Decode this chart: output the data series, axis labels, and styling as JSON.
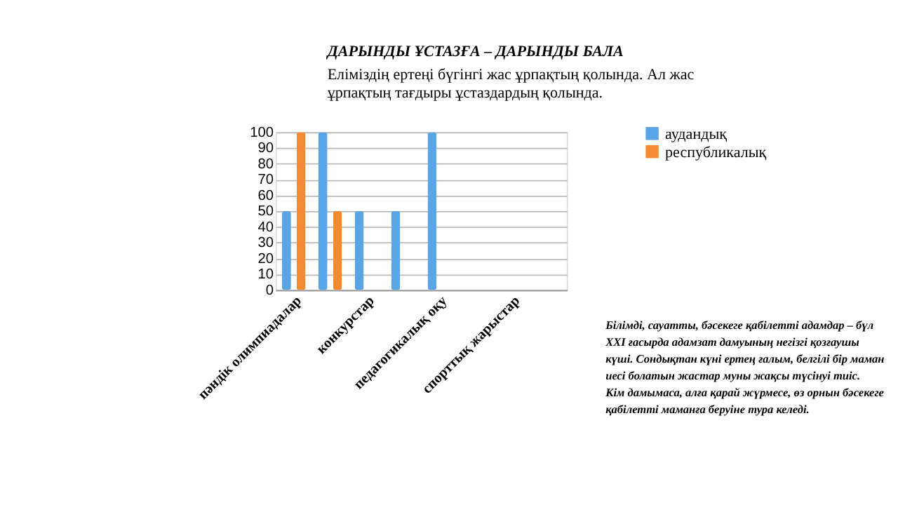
{
  "chart_data": {
    "type": "bar",
    "title": "ДАРЫНДЫ ҰСТАЗҒА – ДАРЫНДЫ БАЛА",
    "subtitle": [
      "Еліміздің ертеңі бүгінгі жас ұрпақтың қолында. Ал жас",
      "ұрпақтың тағдыры  ұстаздардың қолында."
    ],
    "categories": [
      "пәндік олимпиадалар",
      null,
      "конкурстар",
      null,
      "педагогикалық оқу",
      null,
      "спорттық жарыстар",
      null
    ],
    "series": [
      {
        "name": "аудандық",
        "color": "#5aa5e6",
        "values": [
          50,
          100,
          50,
          50,
          100,
          null,
          null,
          null
        ]
      },
      {
        "name": "республикалық",
        "color": "#f58a32",
        "values": [
          100,
          50,
          null,
          null,
          null,
          null,
          null,
          null
        ]
      }
    ],
    "ylim": [
      0,
      100
    ],
    "yticks": [
      0,
      10,
      20,
      30,
      40,
      50,
      60,
      70,
      80,
      90,
      100
    ],
    "grid": "y",
    "legend": "right",
    "annotations": [
      "Білімді, сауатты, бәсекеге қабілетті адамдар – бүл\nXXI ғасырда адамзат дамуының негізгі қозғаушы\nкүші. Сондықтан күні ертең ғалым, белгілі бір маман\nиесі болатын жастар муны жақсы түсінуі тиіс.\nКім дамымаса, алға қарай жүрмесе, өз орнын бәсекеге\nқабілетті маманға беруіне тура келеді."
    ]
  }
}
